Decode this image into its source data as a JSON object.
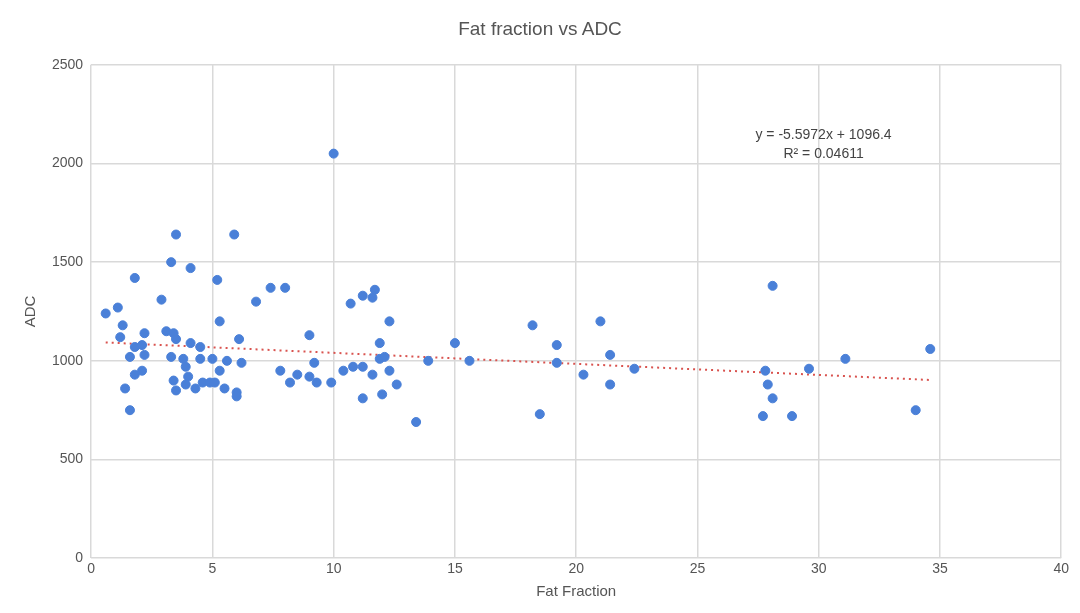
{
  "chart_data": {
    "type": "scatter",
    "title": "Fat fraction vs ADC",
    "xlabel": "Fat Fraction",
    "ylabel": "ADC",
    "xlim": [
      0,
      40
    ],
    "xticks": [
      0,
      5,
      10,
      15,
      20,
      25,
      30,
      35,
      40
    ],
    "ylim": [
      0,
      2500
    ],
    "yticks": [
      0,
      500,
      1000,
      1500,
      2000,
      2500
    ],
    "grid": true,
    "legend": false,
    "marker": "circle",
    "annotations": [
      "y = -5.5972x + 1096.4",
      "R² = 0.04611"
    ],
    "series": [
      {
        "color": "#4a80d8",
        "x": [
          3.5,
          5.9,
          3.3,
          4.1,
          1.8,
          5.2,
          2.9,
          6.8,
          0.6,
          1.1,
          5.3,
          1.3,
          1.2,
          2.2,
          3.1,
          3.4,
          3.5,
          6.1,
          4.1,
          4.5,
          1.8,
          2.1,
          2.2,
          1.6,
          3.3,
          3.8,
          4.5,
          5.0,
          5.6,
          6.2,
          3.9,
          4.0,
          5.3,
          2.1,
          1.8,
          3.4,
          3.9,
          3.5,
          4.3,
          4.6,
          4.9,
          5.1,
          5.5,
          6.0,
          6.0,
          1.4,
          1.6,
          10.0,
          7.4,
          8.0,
          11.7,
          11.2,
          11.6,
          10.7,
          12.3,
          9.0,
          11.9,
          15.0,
          11.9,
          12.1,
          13.9,
          15.6,
          9.2,
          7.8,
          8.5,
          8.2,
          9.0,
          9.3,
          9.9,
          10.4,
          10.8,
          11.2,
          11.6,
          12.3,
          12.6,
          11.2,
          12.0,
          13.4,
          18.2,
          19.2,
          19.2,
          21.0,
          21.4,
          20.3,
          21.4,
          22.4,
          18.5,
          28.1,
          34.6,
          31.1,
          29.6,
          27.8,
          27.9,
          28.1,
          27.7,
          28.9,
          34.0
        ],
        "values": [
          1640,
          1640,
          1500,
          1470,
          1420,
          1410,
          1310,
          1300,
          1240,
          1270,
          1200,
          1180,
          1120,
          1140,
          1150,
          1140,
          1110,
          1110,
          1090,
          1070,
          1070,
          1080,
          1030,
          1020,
          1020,
          1010,
          1010,
          1010,
          1000,
          990,
          970,
          920,
          950,
          950,
          930,
          900,
          880,
          850,
          860,
          890,
          890,
          890,
          860,
          840,
          820,
          860,
          750,
          2050,
          1370,
          1370,
          1360,
          1330,
          1320,
          1290,
          1200,
          1130,
          1090,
          1090,
          1010,
          1020,
          1000,
          1000,
          990,
          950,
          930,
          890,
          920,
          890,
          890,
          950,
          970,
          970,
          930,
          950,
          880,
          810,
          830,
          690,
          1180,
          1080,
          990,
          1200,
          1030,
          930,
          880,
          960,
          730,
          1380,
          1060,
          1010,
          960,
          950,
          880,
          810,
          720,
          720,
          750
        ]
      },
      {
        "type": "line",
        "color": "#d9534f",
        "line_style": "dotted",
        "marker": "none",
        "x": [
          0.6,
          34.6
        ],
        "values": [
          1093,
          903
        ]
      }
    ]
  }
}
